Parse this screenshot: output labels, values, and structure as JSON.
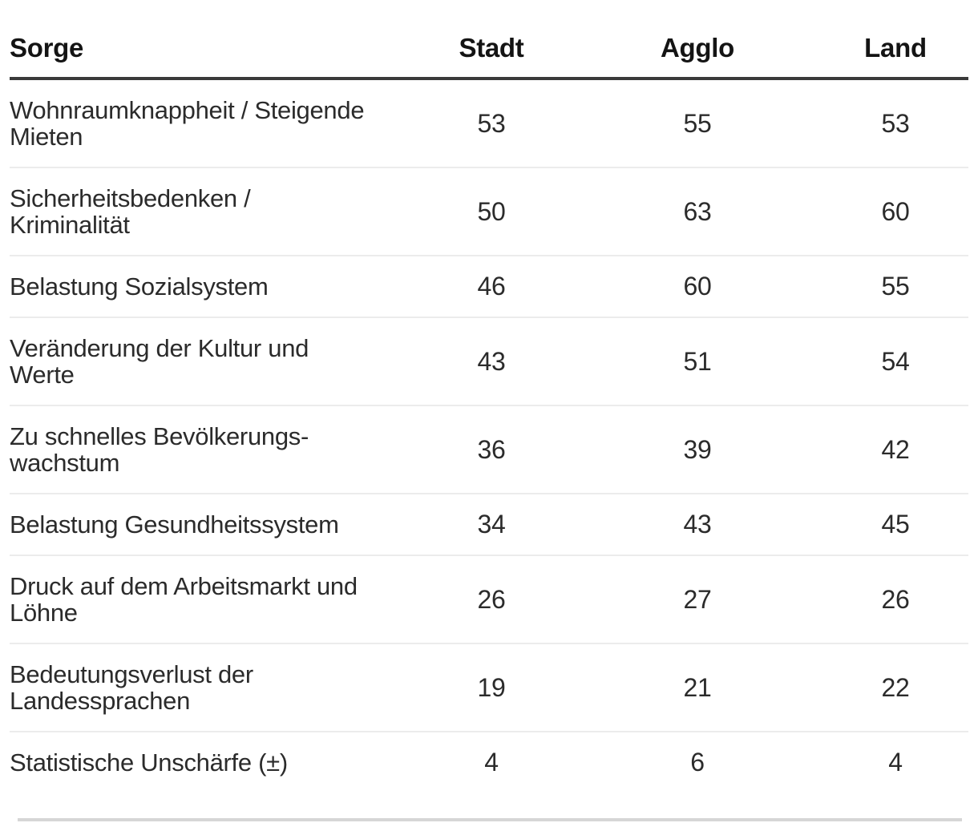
{
  "accent_colors": {
    "header_text": "#141414",
    "body_text": "#2b2b2b",
    "header_rule": "#3a3a3a",
    "row_divider": "#ececec",
    "bottom_rule": "#d6d6d6",
    "background": "#ffffff"
  },
  "table": {
    "columns": [
      {
        "label": "Sorge"
      },
      {
        "label": "Stadt"
      },
      {
        "label": "Agglo"
      },
      {
        "label": "Land"
      }
    ],
    "rows": [
      {
        "label": "Wohnraumknappheit / Steigende\nMieten",
        "values": [
          53,
          55,
          53
        ]
      },
      {
        "label": "Sicherheitsbedenken /\nKriminalität",
        "values": [
          50,
          63,
          60
        ]
      },
      {
        "label": "Belastung Sozialsystem",
        "values": [
          46,
          60,
          55
        ]
      },
      {
        "label": "Veränderung der Kultur und\nWerte",
        "values": [
          43,
          51,
          54
        ]
      },
      {
        "label": "Zu schnelles Bevölkerungs-\nwachstum",
        "values": [
          36,
          39,
          42
        ]
      },
      {
        "label": "Belastung Gesundheitssystem",
        "values": [
          34,
          43,
          45
        ]
      },
      {
        "label": "Druck auf dem Arbeitsmarkt und\nLöhne",
        "values": [
          26,
          27,
          26
        ]
      },
      {
        "label": "Bedeutungsverlust der\nLandessprachen",
        "values": [
          19,
          21,
          22
        ]
      },
      {
        "label": "Statistische Unschärfe (±)",
        "values": [
          4,
          6,
          4
        ]
      }
    ]
  },
  "chart_data": {
    "type": "table",
    "title": "",
    "columns": [
      "Sorge",
      "Stadt",
      "Agglo",
      "Land"
    ],
    "categories": [
      "Wohnraumknappheit / Steigende Mieten",
      "Sicherheitsbedenken / Kriminalität",
      "Belastung Sozialsystem",
      "Veränderung der Kultur und Werte",
      "Zu schnelles Bevölkerungs-wachstum",
      "Belastung Gesundheitssystem",
      "Druck auf dem Arbeitsmarkt und Löhne",
      "Bedeutungsverlust der Landessprachen",
      "Statistische Unschärfe (±)"
    ],
    "series": [
      {
        "name": "Stadt",
        "values": [
          53,
          50,
          46,
          43,
          36,
          34,
          26,
          19,
          4
        ]
      },
      {
        "name": "Agglo",
        "values": [
          55,
          63,
          60,
          51,
          39,
          43,
          27,
          21,
          6
        ]
      },
      {
        "name": "Land",
        "values": [
          53,
          60,
          55,
          54,
          42,
          45,
          26,
          22,
          4
        ]
      }
    ]
  }
}
